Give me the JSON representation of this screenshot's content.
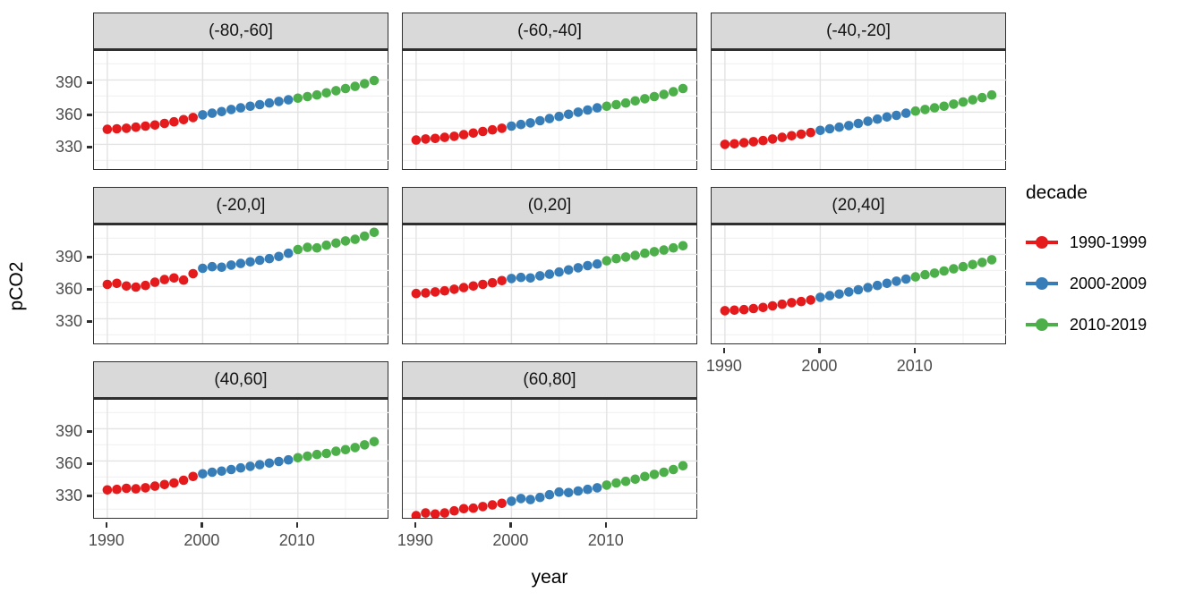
{
  "axes": {
    "x_label": "year",
    "y_label": "pCO2",
    "x_tick_labels": [
      "1990",
      "2000",
      "2010"
    ],
    "y_tick_labels": [
      "390",
      "360",
      "330"
    ]
  },
  "legend": {
    "title": "decade",
    "entries": [
      {
        "label": "1990-1999",
        "color": "#E41A1C"
      },
      {
        "label": "2000-2009",
        "color": "#377EB8"
      },
      {
        "label": "2010-2019",
        "color": "#4DAF4A"
      }
    ]
  },
  "chart_data": {
    "type": "scatter",
    "xlabel": "year",
    "ylabel": "pCO2",
    "x_ticks": [
      1990,
      2000,
      2010
    ],
    "x_minor_ticks": [
      1995,
      2005,
      2015
    ],
    "y_ticks": [
      330,
      360,
      390
    ],
    "y_minor_ticks": [
      315,
      345,
      375,
      405
    ],
    "xlim": [
      1988.6,
      2019.6
    ],
    "ylim": [
      307,
      417
    ],
    "grid": true,
    "legend_position": "right",
    "decade_colors": [
      "#E41A1C",
      "#377EB8",
      "#4DAF4A"
    ],
    "decade_breaks": [
      1990,
      2000,
      2010
    ],
    "years": [
      1990,
      1991,
      1992,
      1993,
      1994,
      1995,
      1996,
      1997,
      1998,
      1999,
      2000,
      2001,
      2002,
      2003,
      2004,
      2005,
      2006,
      2007,
      2008,
      2009,
      2010,
      2011,
      2012,
      2013,
      2014,
      2015,
      2016,
      2017,
      2018
    ],
    "facets": [
      {
        "label": "(-80,-60]",
        "pco2": [
          344,
          344.5,
          345,
          346,
          347,
          348,
          349.5,
          351,
          353,
          355,
          357.5,
          359,
          360.5,
          362.5,
          364,
          365.5,
          367,
          368.5,
          370,
          371.5,
          373,
          374.5,
          376,
          378,
          380,
          382,
          384,
          386.5,
          389.5
        ]
      },
      {
        "label": "(-60,-40]",
        "pco2": [
          334,
          335,
          335.5,
          336.5,
          337.5,
          339,
          340.5,
          342,
          343.5,
          345,
          347,
          348.5,
          350,
          352,
          354,
          356,
          358,
          360,
          362,
          364,
          365.5,
          367,
          368.5,
          370.5,
          372.5,
          374.5,
          376.5,
          379,
          382
        ]
      },
      {
        "label": "(-40,-20]",
        "pco2": [
          330,
          330.5,
          331.5,
          332.5,
          333.5,
          335,
          336.5,
          338,
          339.5,
          341,
          343,
          344.5,
          346,
          347.5,
          349.5,
          351.5,
          353.5,
          355.5,
          357,
          359,
          361,
          362.5,
          364,
          365.5,
          367.5,
          369.5,
          371.5,
          373.5,
          376
        ]
      },
      {
        "label": "(-20,0]",
        "pco2": [
          362,
          363,
          360.5,
          359.5,
          361,
          364,
          366.5,
          368,
          366,
          372,
          377,
          378.5,
          378,
          380,
          381.5,
          383,
          384.5,
          386,
          388,
          391,
          394.5,
          396.5,
          396,
          398.5,
          400.5,
          402.5,
          404,
          407,
          410.5
        ]
      },
      {
        "label": "(0,20]",
        "pco2": [
          353.5,
          354,
          355,
          356,
          357.5,
          359,
          360.5,
          362,
          363.5,
          365.5,
          367.5,
          368.5,
          368,
          370,
          371.5,
          373.5,
          375.5,
          377.5,
          379.5,
          381,
          384,
          386,
          387.5,
          389,
          391,
          392.5,
          394,
          396,
          398
        ]
      },
      {
        "label": "(20,40]",
        "pco2": [
          337.5,
          338,
          338.5,
          339.5,
          340.5,
          342,
          343.5,
          345,
          346,
          347.5,
          350,
          351.5,
          353,
          355,
          357,
          359,
          361,
          363,
          365,
          367,
          369,
          371,
          372.5,
          374.5,
          376.5,
          378.5,
          380.5,
          382.5,
          385
        ]
      },
      {
        "label": "(40,60]",
        "pco2": [
          333,
          333.5,
          334.5,
          334,
          335,
          336.5,
          338,
          339.5,
          342,
          345.5,
          348,
          349.5,
          350.5,
          352,
          353.5,
          355,
          356.5,
          358,
          359.5,
          361,
          363,
          364.5,
          366,
          367,
          369,
          370.5,
          372.5,
          375,
          378
        ]
      },
      {
        "label": "(60,80]",
        "pco2": [
          309,
          311.5,
          310.5,
          311.5,
          313.5,
          315.5,
          316,
          317.5,
          319,
          320.5,
          322.5,
          325,
          324,
          326,
          328.5,
          331,
          330.5,
          332,
          333.5,
          335,
          337.5,
          339.5,
          341,
          343,
          345.5,
          347.5,
          349.5,
          352,
          355.5
        ]
      }
    ]
  }
}
